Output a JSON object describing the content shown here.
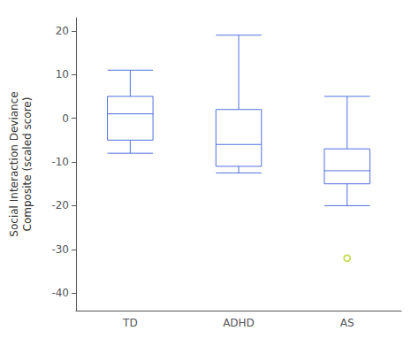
{
  "chart_data": {
    "type": "box",
    "categories": [
      "TD",
      "ADHD",
      "AS"
    ],
    "boxes": [
      {
        "whislo": -8.0,
        "q1": -5.0,
        "med": 1.0,
        "q3": 5.0,
        "whishi": 11.0,
        "fliers": []
      },
      {
        "whislo": -12.5,
        "q1": -11.0,
        "med": -6.0,
        "q3": 2.0,
        "whishi": 19.0,
        "fliers": []
      },
      {
        "whislo": -20.0,
        "q1": -15.0,
        "med": -12.0,
        "q3": -7.0,
        "whishi": 5.0,
        "fliers": [
          -32.0
        ]
      }
    ],
    "ylabel": "Social Interaction Deviance\nComposite (scaled score)",
    "ylim": [
      -44,
      23
    ],
    "yticks": [
      20,
      10,
      0,
      -10,
      -20,
      -30,
      -40
    ],
    "grid": false
  }
}
